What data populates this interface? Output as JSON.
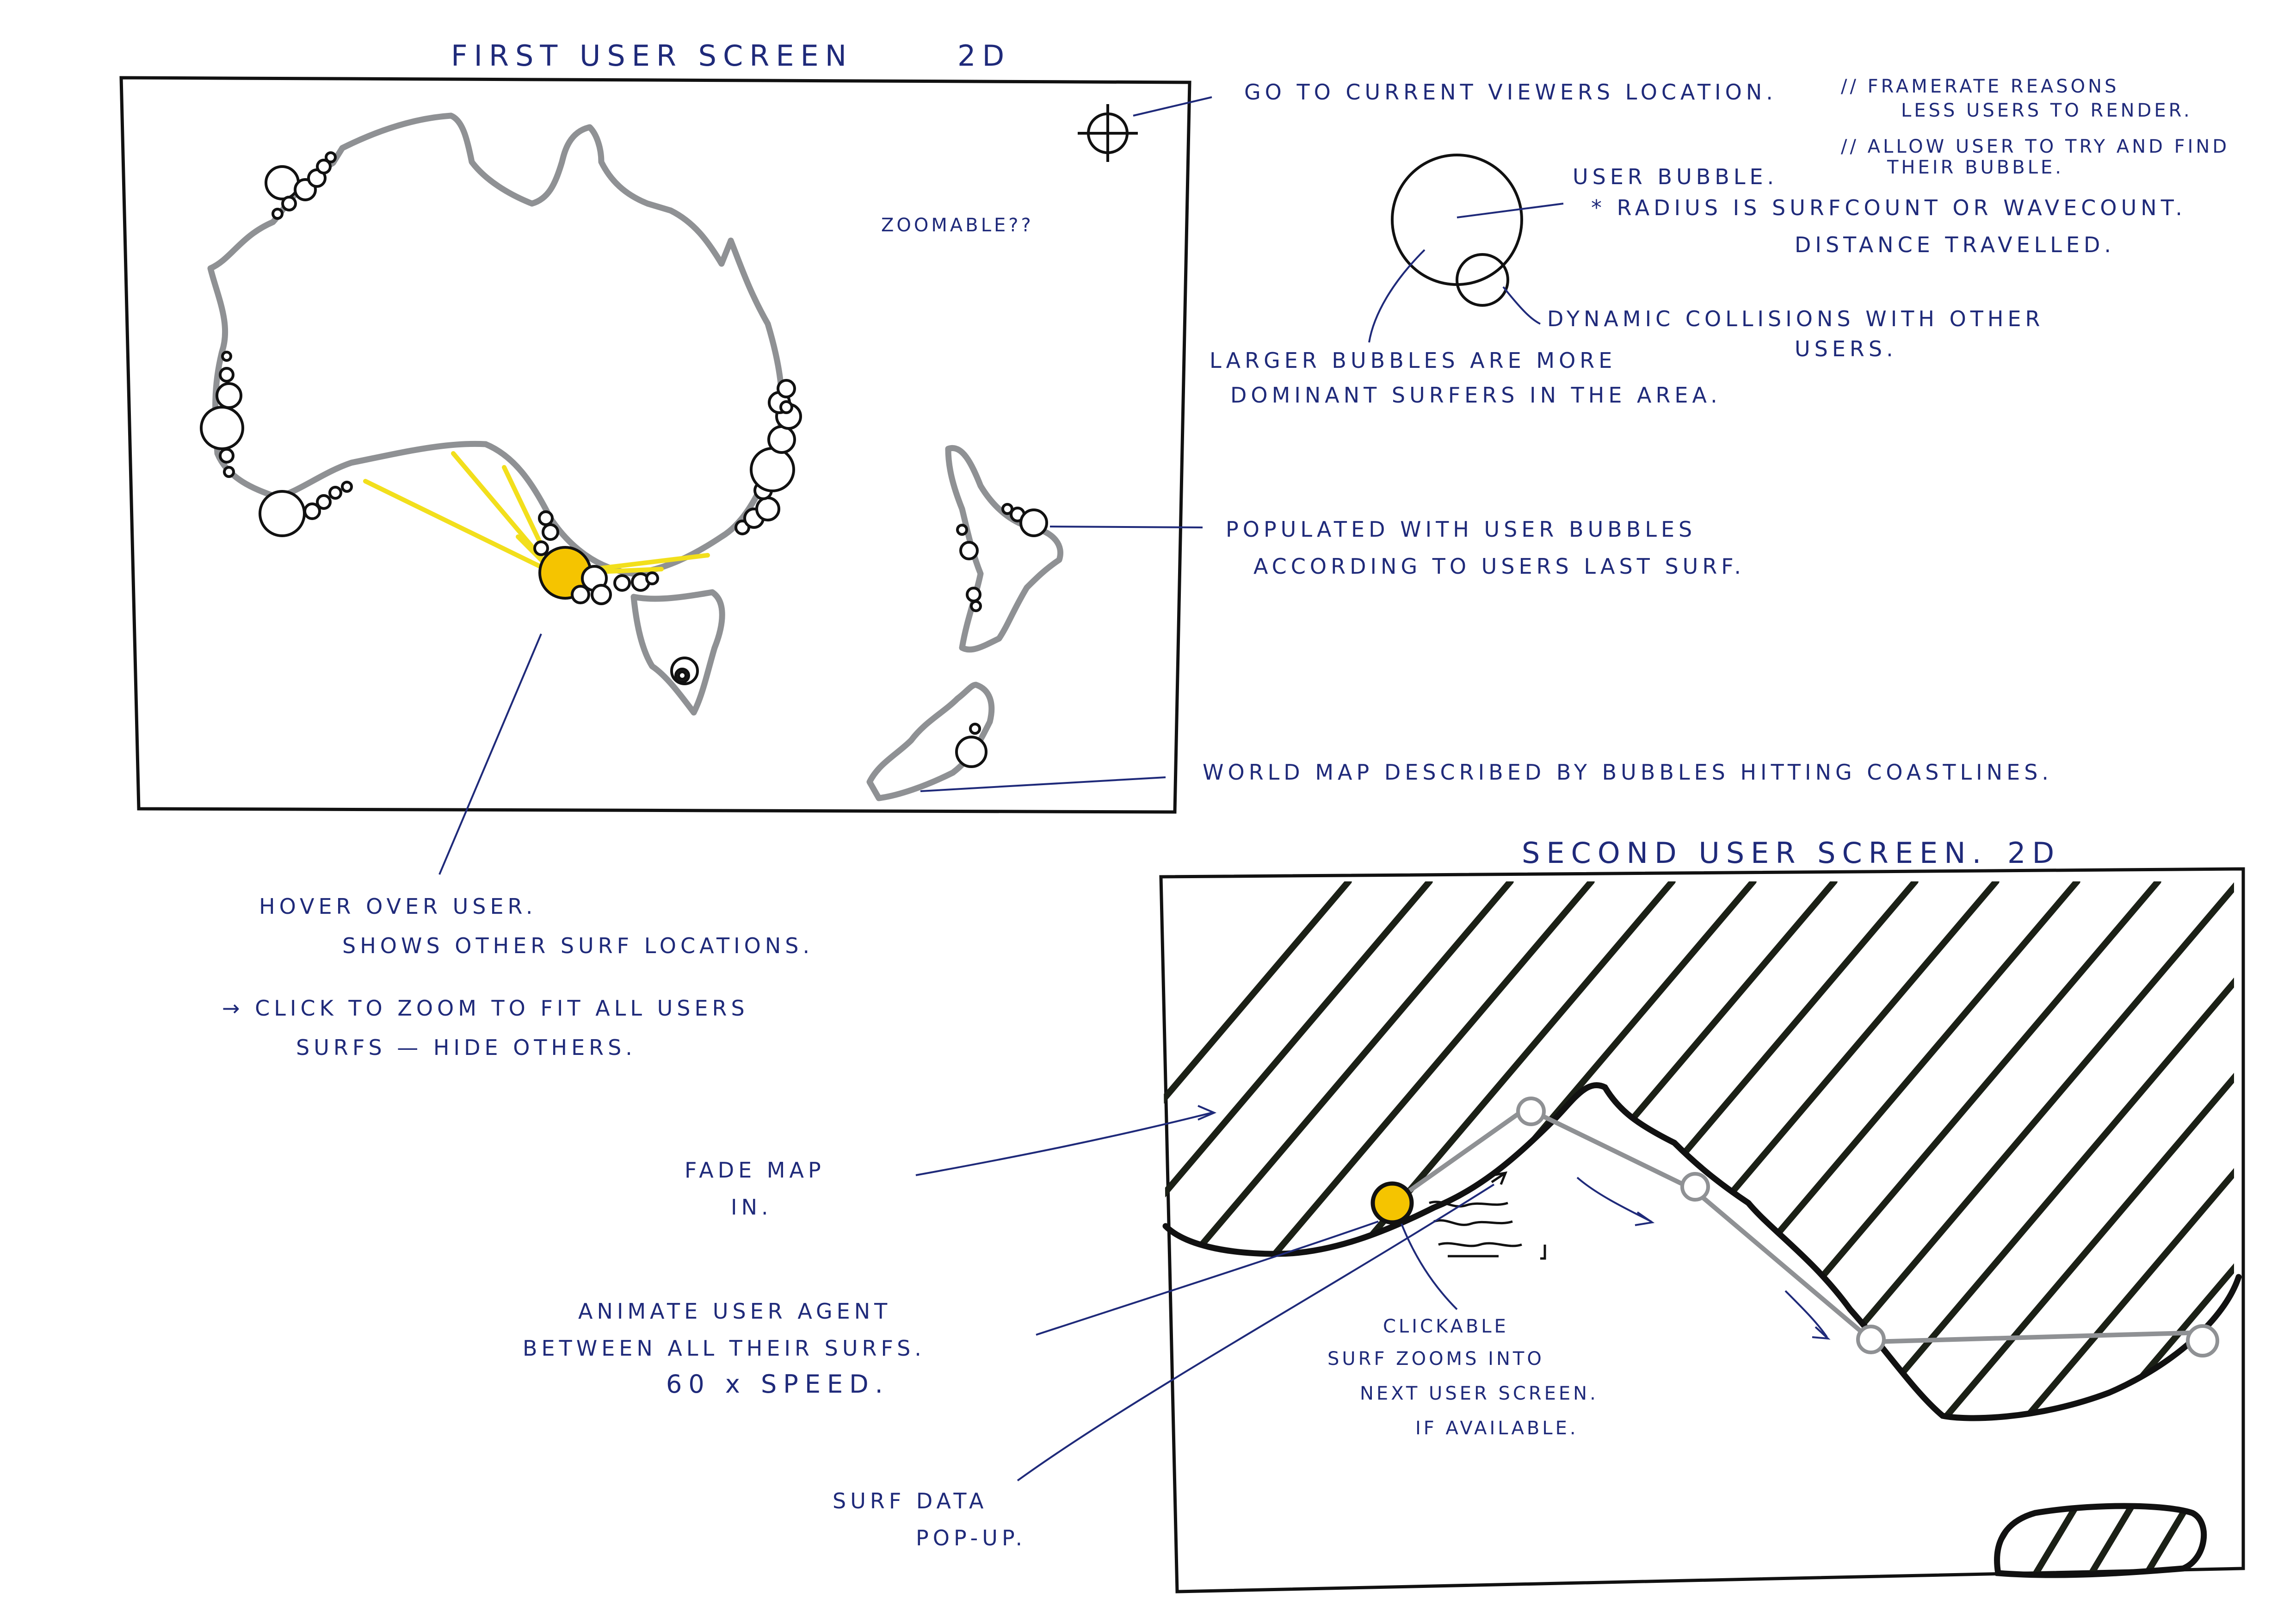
{
  "screens": {
    "first_title": "FIRST USER SCREEN",
    "first_mode": "2D",
    "second_title": "SECOND USER SCREEN.",
    "second_mode": "2D"
  },
  "notes": {
    "zoomable": "ZOOMABLE??",
    "go_to_location": "GO TO CURRENT VIEWERS LOCATION.",
    "framerate_1": "// FRAMERATE REASONS",
    "framerate_2": "LESS USERS TO RENDER.",
    "allow_1": "// ALLOW USER TO TRY AND FIND",
    "allow_2": "THEIR BUBBLE.",
    "user_bubble": "USER BUBBLE.",
    "radius_1": "* RADIUS IS SURFCOUNT OR WAVECOUNT.",
    "radius_2": "DISTANCE TRAVELLED.",
    "dynamic_1": "DYNAMIC COLLISIONS WITH OTHER",
    "dynamic_2": "USERS.",
    "larger_1": "LARGER BUBBLES ARE MORE",
    "larger_2": "DOMINANT SURFERS IN THE AREA.",
    "populated_1": "POPULATED WITH USER BUBBLES",
    "populated_2": "ACCORDING TO USERS LAST SURF.",
    "world_map": "WORLD MAP DESCRIBED BY BUBBLES HITTING COASTLINES.",
    "hover_1": "HOVER OVER USER.",
    "hover_2": "SHOWS OTHER SURF LOCATIONS.",
    "click_1": "→ CLICK TO ZOOM TO FIT ALL USERS",
    "click_2": "SURFS — HIDE OTHERS.",
    "fade_1": "FADE MAP",
    "fade_2": "IN.",
    "animate_1": "ANIMATE USER AGENT",
    "animate_2": "BETWEEN ALL THEIR SURFS.",
    "animate_3": "60 x SPEED.",
    "clickable_1": "CLICKABLE",
    "clickable_2": "SURF ZOOMS INTO",
    "clickable_3": "NEXT USER SCREEN.",
    "clickable_4": "IF AVAILABLE.",
    "popup_1": "SURF DATA",
    "popup_2": "POP-UP."
  },
  "colors": {
    "ink": "#1f2a7a",
    "coast": "#8f9194",
    "highlight": "#f5c400",
    "hover_rays": "#f2df1c",
    "land_hatch": "#1b2016"
  },
  "icons": {
    "locate": "crosshair-icon"
  }
}
